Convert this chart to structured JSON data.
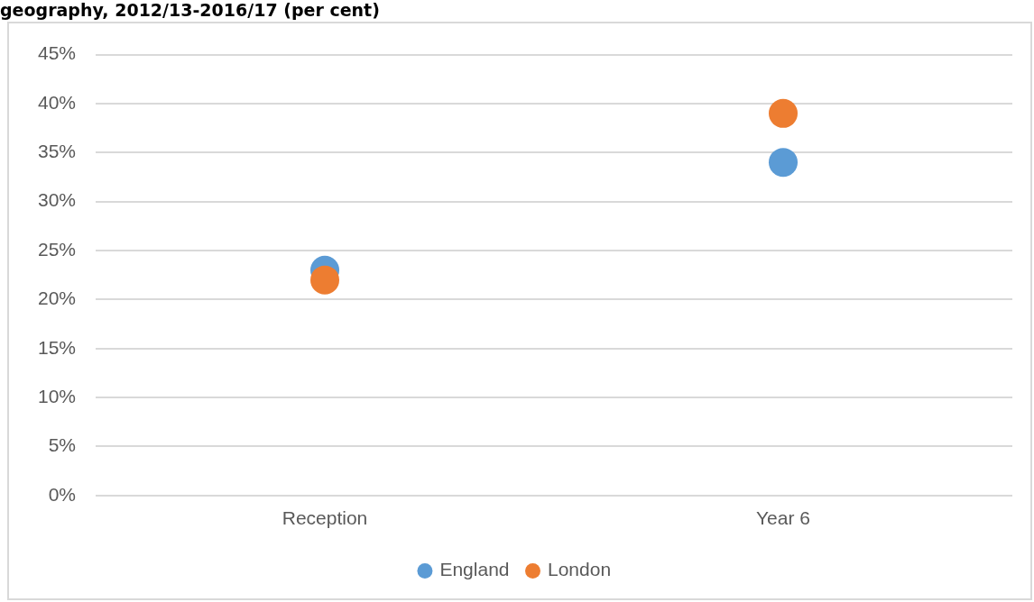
{
  "chart_data": {
    "type": "scatter",
    "title": "geography, 2012/13-2016/17 (per cent)",
    "categories": [
      "Reception",
      "Year 6"
    ],
    "series": [
      {
        "name": "England",
        "color": "#5b9bd5",
        "values": [
          23,
          34
        ]
      },
      {
        "name": "London",
        "color": "#ed7d31",
        "values": [
          22,
          39
        ]
      }
    ],
    "ylim": [
      0,
      45
    ],
    "yticks": [
      {
        "value": 0,
        "label": "0%"
      },
      {
        "value": 5,
        "label": "5%"
      },
      {
        "value": 10,
        "label": "10%"
      },
      {
        "value": 15,
        "label": "15%"
      },
      {
        "value": 20,
        "label": "20%"
      },
      {
        "value": 25,
        "label": "25%"
      },
      {
        "value": 30,
        "label": "30%"
      },
      {
        "value": 35,
        "label": "35%"
      },
      {
        "value": 40,
        "label": "40%"
      },
      {
        "value": 45,
        "label": "45%"
      }
    ],
    "grid": "y",
    "legend": "bottom",
    "marker": "circle"
  }
}
